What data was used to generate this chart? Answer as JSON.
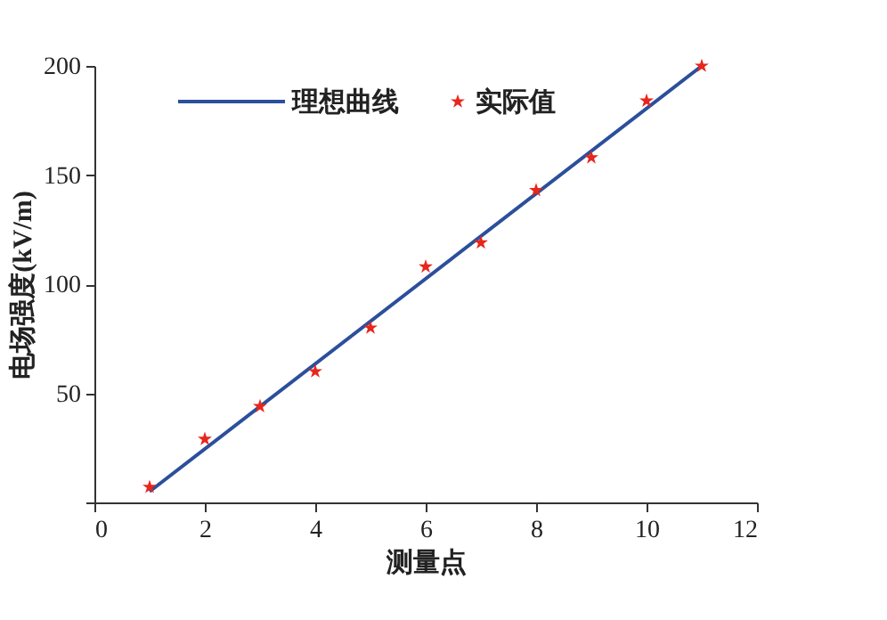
{
  "chart_data": {
    "type": "scatter",
    "xlabel": "测量点",
    "ylabel": "电场强度(kV/m)",
    "xlim": [
      0,
      12
    ],
    "xticks": [
      0,
      2,
      4,
      6,
      8,
      10,
      12
    ],
    "ylim": [
      0,
      200
    ],
    "yticks": [
      {
        "value": 0,
        "label": null
      },
      50,
      100,
      150,
      200
    ],
    "grid": false,
    "legend": "top left",
    "series": [
      {
        "name": "理想曲线",
        "type": "line",
        "color": "#2b4f9b",
        "x": [
          1,
          11
        ],
        "values": [
          5,
          200
        ],
        "marker": "none",
        "line_style": "solid"
      },
      {
        "name": "实际值",
        "color": "#e8261c",
        "x": [
          1,
          2,
          3,
          4,
          5,
          6,
          7,
          8,
          9,
          10,
          11
        ],
        "values": [
          7,
          29,
          44,
          60,
          80,
          108,
          119,
          143,
          158,
          184,
          200
        ],
        "marker": "star"
      }
    ]
  }
}
